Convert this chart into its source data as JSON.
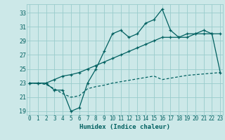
{
  "xlabel": "Humidex (Indice chaleur)",
  "bg_color": "#cce8e8",
  "grid_color": "#99cccc",
  "line_color": "#006060",
  "x_ticks": [
    0,
    1,
    2,
    3,
    4,
    5,
    6,
    7,
    8,
    9,
    10,
    11,
    12,
    13,
    14,
    15,
    16,
    17,
    18,
    19,
    20,
    21,
    22,
    23
  ],
  "y_ticks": [
    19,
    21,
    23,
    25,
    27,
    29,
    31,
    33
  ],
  "xlim": [
    -0.3,
    23.3
  ],
  "ylim": [
    18.5,
    34.2
  ],
  "line1_y": [
    23,
    23,
    23,
    22,
    22,
    19,
    19.5,
    23,
    25,
    27.5,
    30,
    30.5,
    29.5,
    30,
    31.5,
    32,
    33.5,
    30.5,
    29.5,
    29.5,
    30,
    30.5,
    30,
    24.5
  ],
  "line2_y": [
    23,
    23,
    23,
    23.5,
    24,
    24.2,
    24.5,
    25,
    25.5,
    26,
    26.5,
    27,
    27.5,
    28,
    28.5,
    29,
    29.5,
    29.5,
    29.5,
    30,
    30,
    30,
    30,
    30
  ],
  "line3_y": [
    23,
    23,
    22.8,
    22.2,
    21.5,
    21,
    21.2,
    22.2,
    22.5,
    22.7,
    23,
    23.2,
    23.4,
    23.6,
    23.8,
    24,
    23.5,
    23.7,
    23.9,
    24.1,
    24.2,
    24.3,
    24.4,
    24.5
  ]
}
